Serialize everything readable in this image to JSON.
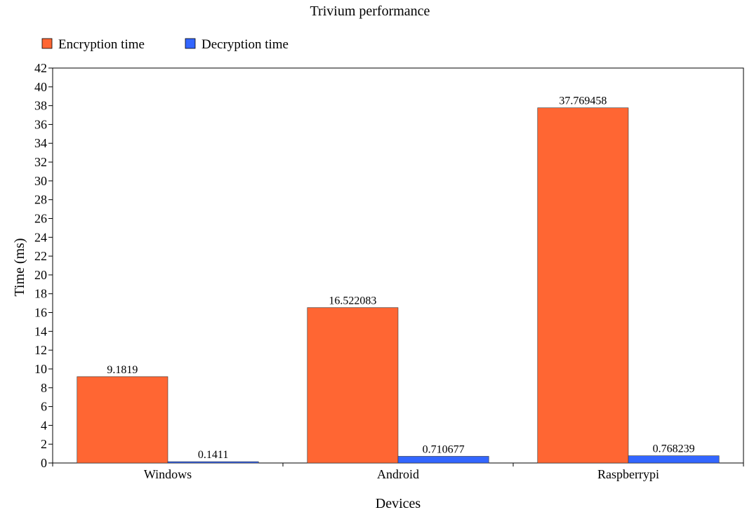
{
  "chart_data": {
    "type": "bar",
    "title": "Trivium performance",
    "xlabel": "Devices",
    "ylabel": "Time (ms)",
    "categories": [
      "Windows",
      "Android",
      "Raspberrypi"
    ],
    "series": [
      {
        "name": "Encryption time",
        "values": [
          9.1819,
          16.522083,
          37.769458
        ],
        "labels": [
          "9.1819",
          "16.522083",
          "37.769458"
        ],
        "color": "#ff6633"
      },
      {
        "name": "Decryption time",
        "values": [
          0.1411,
          0.710677,
          0.768239
        ],
        "labels": [
          "0.1411",
          "0.710677",
          "0.768239"
        ],
        "color": "#3366ff"
      }
    ],
    "ylim": [
      0,
      42
    ],
    "yticks": [
      "0",
      "2",
      "4",
      "6",
      "8",
      "10",
      "12",
      "14",
      "16",
      "18",
      "20",
      "22",
      "24",
      "26",
      "28",
      "30",
      "32",
      "34",
      "36",
      "38",
      "40",
      "42"
    ],
    "grid": false,
    "legend_position": "top-left"
  }
}
